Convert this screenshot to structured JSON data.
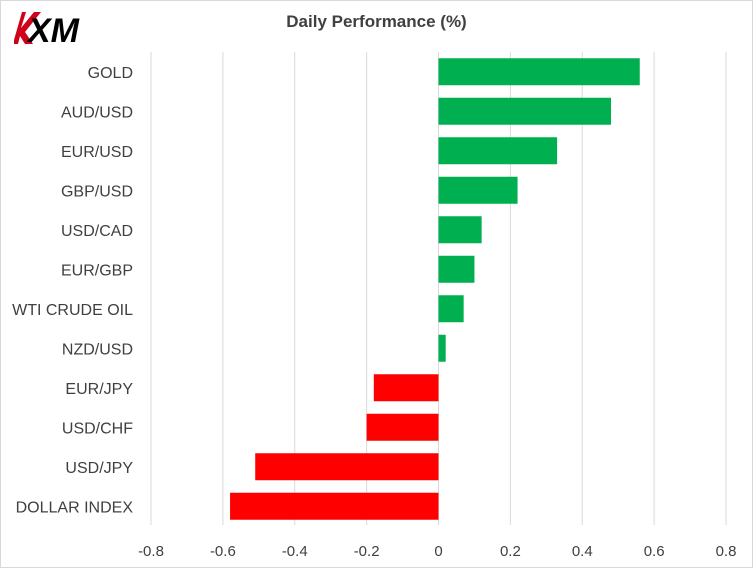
{
  "brand": {
    "logo_text": "XM"
  },
  "colors": {
    "positive": "#00b050",
    "negative": "#ff0000",
    "grid": "#d9d9d9",
    "text": "#404040"
  },
  "chart_data": {
    "type": "bar",
    "orientation": "horizontal",
    "title": "Daily Performance (%)",
    "categories": [
      "GOLD",
      "AUD/USD",
      "EUR/USD",
      "GBP/USD",
      "USD/CAD",
      "EUR/GBP",
      "WTI CRUDE OIL",
      "NZD/USD",
      "EUR/JPY",
      "USD/CHF",
      "USD/JPY",
      "DOLLAR INDEX"
    ],
    "values": [
      0.56,
      0.48,
      0.33,
      0.22,
      0.12,
      0.1,
      0.07,
      0.02,
      -0.18,
      -0.2,
      -0.51,
      -0.58
    ],
    "xlim": [
      -0.8,
      0.8
    ],
    "xticks": [
      -0.8,
      -0.6,
      -0.4,
      -0.2,
      0,
      0.2,
      0.4,
      0.6,
      0.8
    ],
    "xtick_labels": [
      "-0.8",
      "-0.6",
      "-0.4",
      "-0.2",
      "0",
      "0.2",
      "0.4",
      "0.6",
      "0.8"
    ],
    "grid": "vertical",
    "legend": "none"
  }
}
